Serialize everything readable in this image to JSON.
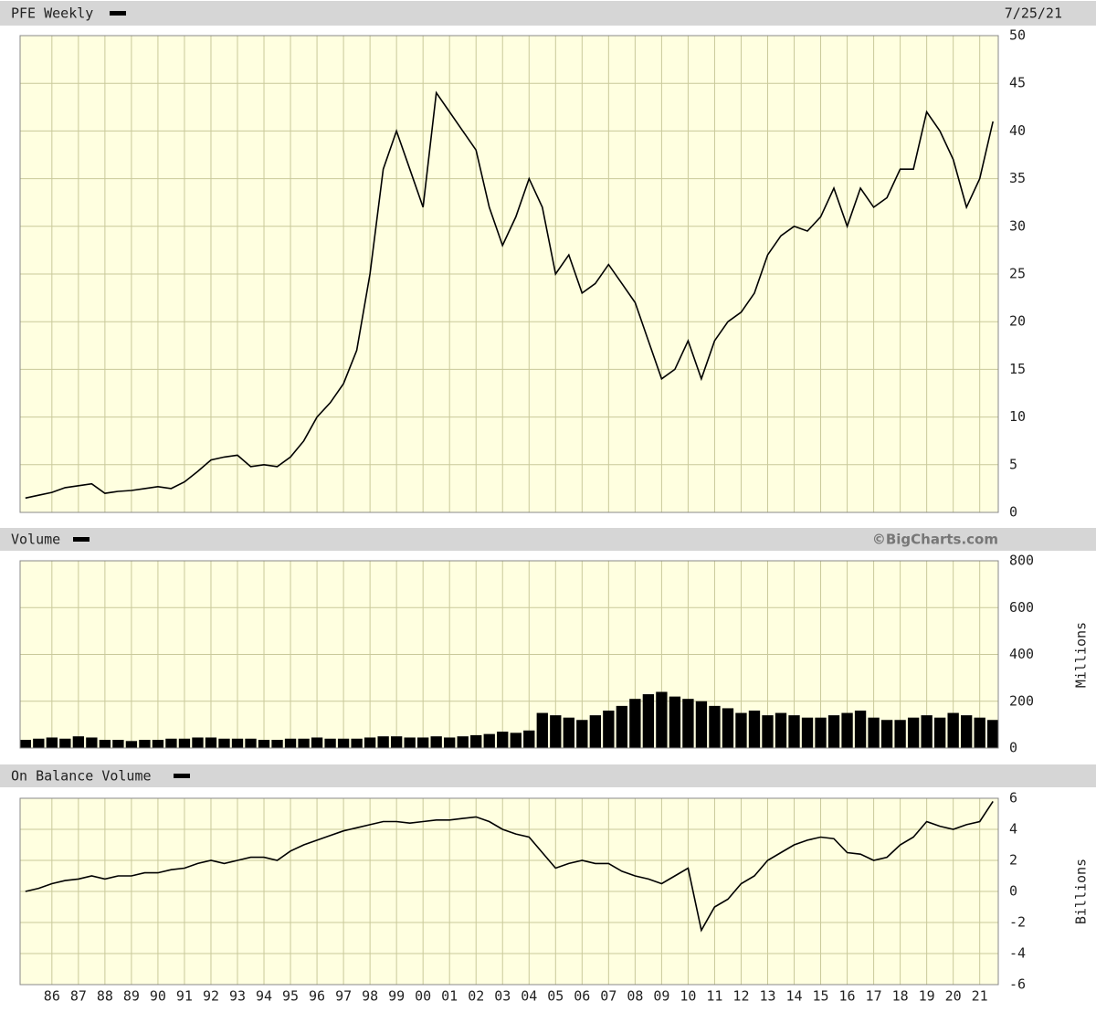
{
  "chart_data": [
    {
      "type": "line",
      "title": "PFE Weekly",
      "date": "7/25/21",
      "color": "#000000",
      "grid": true,
      "x": [
        1985,
        1985.5,
        1986,
        1986.5,
        1987,
        1987.5,
        1988,
        1988.5,
        1989,
        1989.5,
        1990,
        1990.5,
        1991,
        1991.5,
        1992,
        1992.5,
        1993,
        1993.5,
        1994,
        1994.5,
        1995,
        1995.5,
        1996,
        1996.5,
        1997,
        1997.5,
        1998,
        1998.5,
        1999,
        1999.5,
        2000,
        2000.5,
        2001,
        2001.5,
        2002,
        2002.5,
        2003,
        2003.5,
        2004,
        2004.5,
        2005,
        2005.5,
        2006,
        2006.5,
        2007,
        2007.5,
        2008,
        2008.5,
        2009,
        2009.5,
        2010,
        2010.5,
        2011,
        2011.5,
        2012,
        2012.5,
        2013,
        2013.5,
        2014,
        2014.5,
        2015,
        2015.5,
        2016,
        2016.5,
        2017,
        2017.5,
        2018,
        2018.5,
        2019,
        2019.5,
        2020,
        2020.5,
        2021,
        2021.5
      ],
      "values": [
        1.5,
        1.8,
        2.1,
        2.6,
        2.8,
        3.0,
        2.0,
        2.2,
        2.3,
        2.5,
        2.7,
        2.5,
        3.2,
        4.3,
        5.5,
        5.8,
        6.0,
        4.8,
        5.0,
        4.8,
        5.8,
        7.5,
        10.0,
        11.5,
        13.5,
        17.0,
        25.0,
        36.0,
        40.0,
        36.0,
        32.0,
        44.0,
        42.0,
        40.0,
        38.0,
        32.0,
        28.0,
        31.0,
        35.0,
        32.0,
        25.0,
        27.0,
        23.0,
        24.0,
        26.0,
        24.0,
        22.0,
        18.0,
        14.0,
        15.0,
        18.0,
        14.0,
        18.0,
        20.0,
        21.0,
        23.0,
        27.0,
        29.0,
        30.0,
        29.5,
        31.0,
        34.0,
        30.0,
        34.0,
        32.0,
        33.0,
        36.0,
        36.0,
        42.0,
        40.0,
        37.0,
        32.0,
        35.0,
        41.0
      ],
      "xlim": [
        1984.8,
        2021.7
      ],
      "ylim": [
        0,
        50
      ],
      "yticks": [
        0,
        5,
        10,
        15,
        20,
        25,
        30,
        35,
        40,
        45,
        50
      ]
    },
    {
      "type": "bar",
      "title": "Volume",
      "credit": "©BigCharts.com",
      "y_label": "Millions",
      "color": "#000000",
      "grid": true,
      "x": [
        1985,
        1985.5,
        1986,
        1986.5,
        1987,
        1987.5,
        1988,
        1988.5,
        1989,
        1989.5,
        1990,
        1990.5,
        1991,
        1991.5,
        1992,
        1992.5,
        1993,
        1993.5,
        1994,
        1994.5,
        1995,
        1995.5,
        1996,
        1996.5,
        1997,
        1997.5,
        1998,
        1998.5,
        1999,
        1999.5,
        2000,
        2000.5,
        2001,
        2001.5,
        2002,
        2002.5,
        2003,
        2003.5,
        2004,
        2004.5,
        2005,
        2005.5,
        2006,
        2006.5,
        2007,
        2007.5,
        2008,
        2008.5,
        2009,
        2009.5,
        2010,
        2010.5,
        2011,
        2011.5,
        2012,
        2012.5,
        2013,
        2013.5,
        2014,
        2014.5,
        2015,
        2015.5,
        2016,
        2016.5,
        2017,
        2017.5,
        2018,
        2018.5,
        2019,
        2019.5,
        2020,
        2020.5,
        2021,
        2021.5
      ],
      "values": [
        35,
        40,
        45,
        40,
        50,
        45,
        35,
        35,
        30,
        35,
        35,
        40,
        40,
        45,
        45,
        40,
        40,
        40,
        35,
        35,
        40,
        40,
        45,
        40,
        40,
        40,
        45,
        50,
        50,
        45,
        45,
        50,
        45,
        50,
        55,
        60,
        70,
        65,
        75,
        150,
        140,
        130,
        120,
        140,
        160,
        180,
        210,
        230,
        240,
        220,
        210,
        200,
        180,
        170,
        150,
        160,
        140,
        150,
        140,
        130,
        130,
        140,
        150,
        160,
        130,
        120,
        120,
        130,
        140,
        130,
        150,
        140,
        130,
        120
      ],
      "xlim": [
        1984.8,
        2021.7
      ],
      "ylim": [
        0,
        800
      ],
      "yticks": [
        0,
        200,
        400,
        600,
        800
      ]
    },
    {
      "type": "line",
      "title": "On Balance Volume",
      "y_label": "Billions",
      "color": "#000000",
      "grid": true,
      "x": [
        1985,
        1985.5,
        1986,
        1986.5,
        1987,
        1987.5,
        1988,
        1988.5,
        1989,
        1989.5,
        1990,
        1990.5,
        1991,
        1991.5,
        1992,
        1992.5,
        1993,
        1993.5,
        1994,
        1994.5,
        1995,
        1995.5,
        1996,
        1996.5,
        1997,
        1997.5,
        1998,
        1998.5,
        1999,
        1999.5,
        2000,
        2000.5,
        2001,
        2001.5,
        2002,
        2002.5,
        2003,
        2003.5,
        2004,
        2004.5,
        2005,
        2005.5,
        2006,
        2006.5,
        2007,
        2007.5,
        2008,
        2008.5,
        2009,
        2009.5,
        2010,
        2010.5,
        2011,
        2011.5,
        2012,
        2012.5,
        2013,
        2013.5,
        2014,
        2014.5,
        2015,
        2015.5,
        2016,
        2016.5,
        2017,
        2017.5,
        2018,
        2018.5,
        2019,
        2019.5,
        2020,
        2020.5,
        2021,
        2021.5
      ],
      "values": [
        0,
        0.2,
        0.5,
        0.7,
        0.8,
        1.0,
        0.8,
        1.0,
        1.0,
        1.2,
        1.2,
        1.4,
        1.5,
        1.8,
        2.0,
        1.8,
        2.0,
        2.2,
        2.2,
        2.0,
        2.6,
        3.0,
        3.3,
        3.6,
        3.9,
        4.1,
        4.3,
        4.5,
        4.5,
        4.4,
        4.5,
        4.6,
        4.6,
        4.7,
        4.8,
        4.5,
        4.0,
        3.7,
        3.5,
        2.5,
        1.5,
        1.8,
        2.0,
        1.8,
        1.8,
        1.3,
        1.0,
        0.8,
        0.5,
        1.0,
        1.5,
        -2.5,
        -1.0,
        -0.5,
        0.5,
        1.0,
        2.0,
        2.5,
        3.0,
        3.3,
        3.5,
        3.4,
        2.5,
        2.4,
        2.0,
        2.2,
        3.0,
        3.5,
        4.5,
        4.2,
        4.0,
        4.3,
        4.5,
        5.8
      ],
      "xlim": [
        1984.8,
        2021.7
      ],
      "ylim": [
        -6,
        6
      ],
      "yticks": [
        -6,
        -4,
        -2,
        0,
        2,
        4,
        6
      ],
      "xticks": [
        {
          "value": 1986,
          "label": "86"
        },
        {
          "value": 1987,
          "label": "87"
        },
        {
          "value": 1988,
          "label": "88"
        },
        {
          "value": 1989,
          "label": "89"
        },
        {
          "value": 1990,
          "label": "90"
        },
        {
          "value": 1991,
          "label": "91"
        },
        {
          "value": 1992,
          "label": "92"
        },
        {
          "value": 1993,
          "label": "93"
        },
        {
          "value": 1994,
          "label": "94"
        },
        {
          "value": 1995,
          "label": "95"
        },
        {
          "value": 1996,
          "label": "96"
        },
        {
          "value": 1997,
          "label": "97"
        },
        {
          "value": 1998,
          "label": "98"
        },
        {
          "value": 1999,
          "label": "99"
        },
        {
          "value": 2000,
          "label": "00"
        },
        {
          "value": 2001,
          "label": "01"
        },
        {
          "value": 2002,
          "label": "02"
        },
        {
          "value": 2003,
          "label": "03"
        },
        {
          "value": 2004,
          "label": "04"
        },
        {
          "value": 2005,
          "label": "05"
        },
        {
          "value": 2006,
          "label": "06"
        },
        {
          "value": 2007,
          "label": "07"
        },
        {
          "value": 2008,
          "label": "08"
        },
        {
          "value": 2009,
          "label": "09"
        },
        {
          "value": 2010,
          "label": "10"
        },
        {
          "value": 2011,
          "label": "11"
        },
        {
          "value": 2012,
          "label": "12"
        },
        {
          "value": 2013,
          "label": "13"
        },
        {
          "value": 2014,
          "label": "14"
        },
        {
          "value": 2015,
          "label": "15"
        },
        {
          "value": 2016,
          "label": "16"
        },
        {
          "value": 2017,
          "label": "17"
        },
        {
          "value": 2018,
          "label": "18"
        },
        {
          "value": 2019,
          "label": "19"
        },
        {
          "value": 2020,
          "label": "20"
        },
        {
          "value": 2021,
          "label": "21"
        }
      ]
    }
  ]
}
